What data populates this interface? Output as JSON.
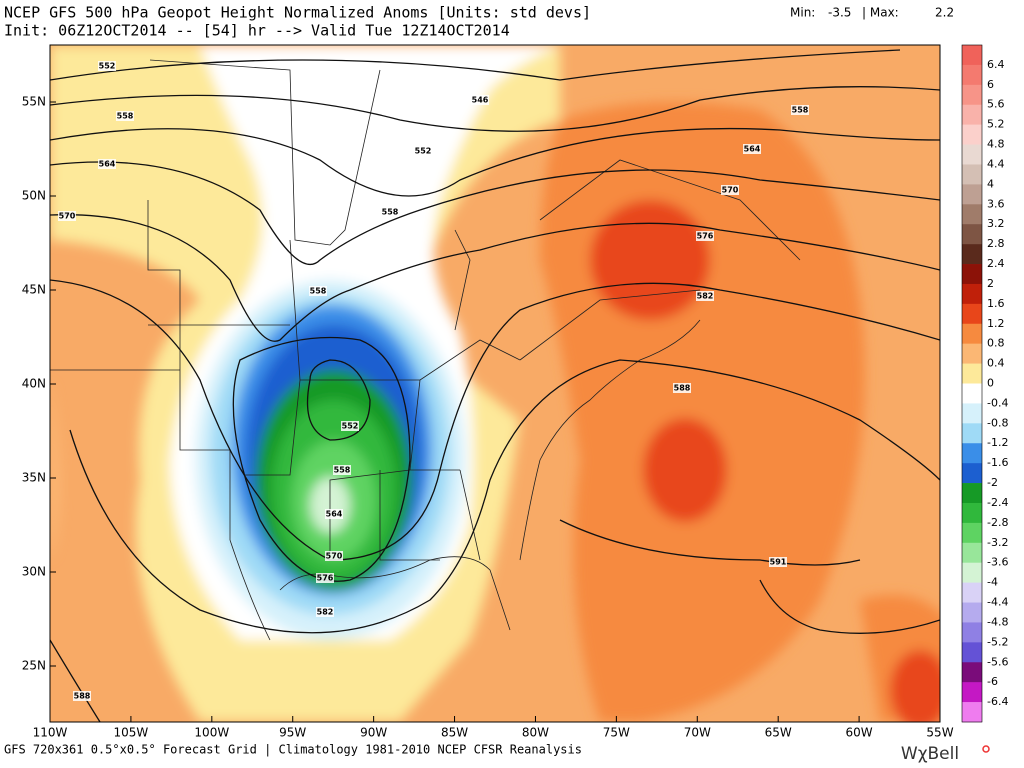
{
  "header": {
    "title": "NCEP GFS 500 hPa Geopot Height Normalized Anoms [Units: std devs]",
    "init": "Init: 06Z12OCT2014 -- [54] hr --> Valid Tue 12Z14OCT2014",
    "min_label": "Min:",
    "min": -3.5,
    "max_label": "| Max:",
    "max": 2.2
  },
  "latitudes": [
    "55N",
    "50N",
    "45N",
    "40N",
    "35N",
    "30N",
    "25N"
  ],
  "longitudes": [
    "110W",
    "105W",
    "100W",
    "95W",
    "90W",
    "85W",
    "80W",
    "75W",
    "70W",
    "65W",
    "60W",
    "55W"
  ],
  "colorbar": {
    "labels": [
      6.4,
      6,
      5.6,
      5.2,
      4.8,
      4.4,
      4,
      3.6,
      3.2,
      2.8,
      2.4,
      2,
      1.6,
      1.2,
      0.8,
      0.4,
      0,
      -0.4,
      -0.8,
      -1.2,
      -1.6,
      -2,
      -2.4,
      -2.8,
      -3.2,
      -3.6,
      -4,
      -4.4,
      -4.8,
      -5.2,
      -5.6,
      -6,
      -6.4
    ],
    "colors": [
      "#f0625a",
      "#f47a6f",
      "#f79488",
      "#f9b2aa",
      "#fbd0cb",
      "#e9d9d2",
      "#d4bfb4",
      "#bea093",
      "#a07c6a",
      "#7e5544",
      "#5a2a1c",
      "#8c1208",
      "#c0200a",
      "#e8461a",
      "#f68a3f",
      "#fbb774",
      "#fde99a",
      "#ffffff",
      "#d6f1fb",
      "#9fdaf6",
      "#3a8ee8",
      "#1c5fd0",
      "#169a26",
      "#30b83c",
      "#5ed362",
      "#98e69a",
      "#d4f3d4",
      "#d9d2f6",
      "#b5abee",
      "#8f80e4",
      "#6452d6",
      "#7a0c7a",
      "#c418c4",
      "#ef7cef"
    ]
  },
  "contour_labels": [
    "552",
    "546",
    "558",
    "552",
    "564",
    "558",
    "564",
    "570",
    "558",
    "570",
    "576",
    "558",
    "582",
    "552",
    "588",
    "558",
    "564",
    "570",
    "576",
    "582",
    "591",
    "588"
  ],
  "footer": "GFS 720x361 0.5°x0.5° Forecast Grid | Climatology 1981-2010 NCEP CFSR Reanalysis",
  "logo": "WχBell"
}
